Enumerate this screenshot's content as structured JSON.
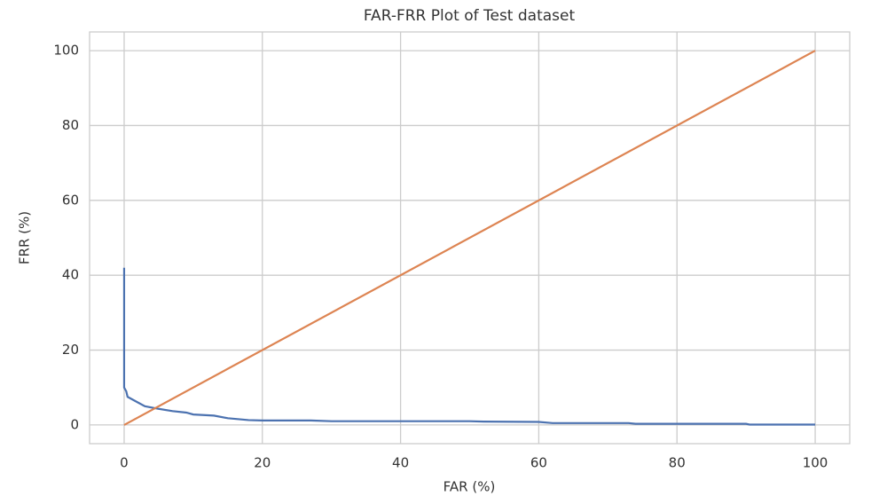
{
  "chart_data": {
    "type": "line",
    "title": "FAR-FRR Plot of Test dataset",
    "x_label": "FAR (%)",
    "y_label": "FRR (%)",
    "series": [
      {
        "color": "#4c72b0",
        "x": [
          0,
          0,
          0.3,
          0.5,
          1,
          2,
          3,
          5,
          7,
          9,
          10,
          13,
          15,
          18,
          20,
          27,
          30,
          50,
          52,
          60,
          62,
          73,
          74,
          90,
          90.5,
          100
        ],
        "values": [
          42,
          10,
          9,
          7.5,
          7,
          6,
          5,
          4.3,
          3.7,
          3.3,
          2.8,
          2.5,
          1.8,
          1.3,
          1.2,
          1.2,
          1.0,
          1.0,
          0.9,
          0.8,
          0.5,
          0.5,
          0.3,
          0.3,
          0.1,
          0.1
        ]
      },
      {
        "color": "#dd8452",
        "x": [
          0,
          100
        ],
        "values": [
          0,
          100
        ]
      }
    ],
    "xlim": [
      -5,
      105
    ],
    "ylim": [
      -5,
      105
    ],
    "xticks": [
      0,
      20,
      40,
      60,
      80,
      100
    ],
    "yticks": [
      0,
      20,
      40,
      60,
      80,
      100
    ],
    "grid": true
  }
}
